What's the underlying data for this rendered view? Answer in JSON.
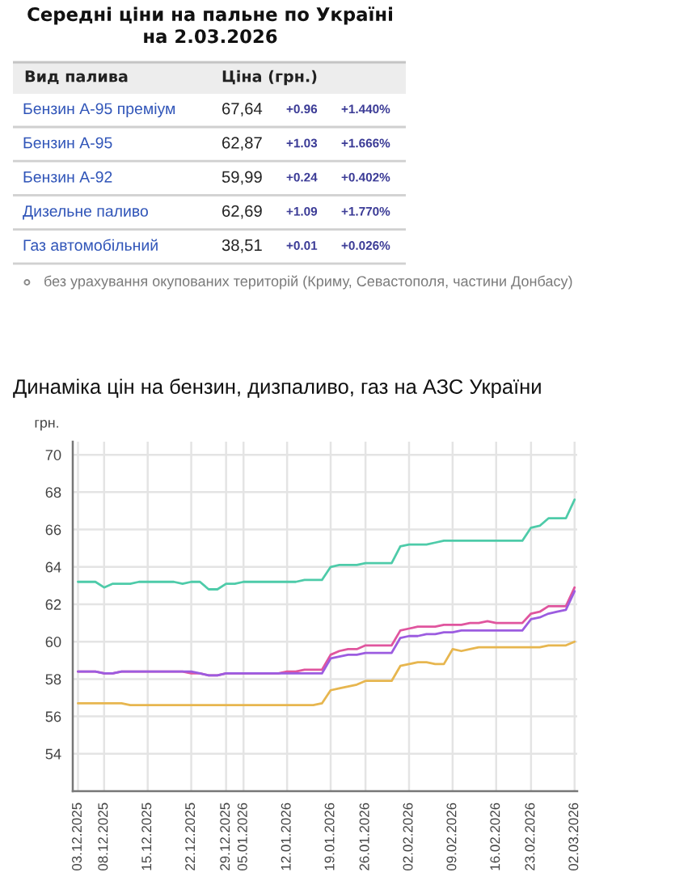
{
  "chart_data": [
    {
      "type": "other",
      "title": "Середні ціни на пальне по Україні\nна 2.03.2026",
      "categories": [
        "Бензин А-95 преміум",
        "Бензин А-95",
        "Бензин А-92",
        "Дизельне паливо",
        "Газ автомобільний"
      ],
      "series": [
        {
          "name": "Ціна (грн.)",
          "color": "#222222",
          "values": [
            67.64,
            62.87,
            59.99,
            62.69,
            38.51
          ],
          "value_labels": [
            "67,64",
            "62,87",
            "59,99",
            "62,69",
            "38,51"
          ]
        },
        {
          "color": "#3b3b96",
          "values": [
            0.96,
            1.03,
            0.24,
            1.09,
            0.01
          ],
          "value_labels": [
            "+0.96",
            "+1.03",
            "+0.24",
            "+1.09",
            "+0.01"
          ]
        },
        {
          "color": "#3b3b96",
          "values": [
            1.44,
            1.666,
            0.402,
            1.77,
            0.026
          ],
          "value_labels": [
            "+1.440%",
            "+1.666%",
            "+0.402%",
            "+1.770%",
            "+0.026%"
          ]
        }
      ],
      "annotations": [
        "Вид палива",
        "без урахування окупованих територій (Криму, Севастополя, частини Донбасу)"
      ]
    },
    {
      "type": "line",
      "title": "Динаміка цін на бензин, дизпаливо, газ на АЗС України",
      "ylabel": "грн.",
      "categories": [
        "03.12.2025",
        null,
        null,
        "08.12.2025",
        null,
        null,
        null,
        null,
        "15.12.2025",
        null,
        null,
        null,
        null,
        "22.12.2025",
        null,
        null,
        null,
        "29.12.2025",
        null,
        "05.01.2026",
        null,
        null,
        null,
        null,
        "12.01.2026",
        null,
        null,
        null,
        null,
        "19.01.2026",
        null,
        null,
        null,
        "26.01.2026",
        null,
        null,
        null,
        null,
        "02.02.2026",
        null,
        null,
        null,
        null,
        "09.02.2026",
        null,
        null,
        null,
        null,
        "16.02.2026",
        null,
        null,
        null,
        "23.02.2026",
        null,
        null,
        null,
        null,
        "02.03.2026"
      ],
      "series": [
        {
          "color": "#4ecba9",
          "values": [
            63.2,
            63.2,
            63.2,
            62.9,
            63.1,
            63.1,
            63.1,
            63.2,
            63.2,
            63.2,
            63.2,
            63.2,
            63.1,
            63.2,
            63.2,
            62.8,
            62.8,
            63.1,
            63.1,
            63.2,
            63.2,
            63.2,
            63.2,
            63.2,
            63.2,
            63.2,
            63.3,
            63.3,
            63.3,
            64.0,
            64.1,
            64.1,
            64.1,
            64.2,
            64.2,
            64.2,
            64.2,
            65.1,
            65.2,
            65.2,
            65.2,
            65.3,
            65.4,
            65.4,
            65.4,
            65.4,
            65.4,
            65.4,
            65.4,
            65.4,
            65.4,
            65.4,
            66.1,
            66.2,
            66.6,
            66.6,
            66.6,
            67.6
          ]
        },
        {
          "color": "#e0559e",
          "values": [
            58.4,
            58.4,
            58.4,
            58.3,
            58.3,
            58.4,
            58.4,
            58.4,
            58.4,
            58.4,
            58.4,
            58.4,
            58.4,
            58.3,
            58.3,
            58.2,
            58.2,
            58.3,
            58.3,
            58.3,
            58.3,
            58.3,
            58.3,
            58.3,
            58.4,
            58.4,
            58.5,
            58.5,
            58.5,
            59.3,
            59.5,
            59.6,
            59.6,
            59.8,
            59.8,
            59.8,
            59.8,
            60.6,
            60.7,
            60.8,
            60.8,
            60.8,
            60.9,
            60.9,
            60.9,
            61.0,
            61.0,
            61.1,
            61.0,
            61.0,
            61.0,
            61.0,
            61.5,
            61.6,
            61.9,
            61.9,
            61.9,
            62.9
          ]
        },
        {
          "color": "#e7b64f",
          "values": [
            56.7,
            56.7,
            56.7,
            56.7,
            56.7,
            56.7,
            56.6,
            56.6,
            56.6,
            56.6,
            56.6,
            56.6,
            56.6,
            56.6,
            56.6,
            56.6,
            56.6,
            56.6,
            56.6,
            56.6,
            56.6,
            56.6,
            56.6,
            56.6,
            56.6,
            56.6,
            56.6,
            56.6,
            56.7,
            57.4,
            57.5,
            57.6,
            57.7,
            57.9,
            57.9,
            57.9,
            57.9,
            58.7,
            58.8,
            58.9,
            58.9,
            58.8,
            58.8,
            59.6,
            59.5,
            59.6,
            59.7,
            59.7,
            59.7,
            59.7,
            59.7,
            59.7,
            59.7,
            59.7,
            59.8,
            59.8,
            59.8,
            60.0
          ]
        },
        {
          "color": "#9c5ce0",
          "values": [
            58.4,
            58.4,
            58.4,
            58.3,
            58.3,
            58.4,
            58.4,
            58.4,
            58.4,
            58.4,
            58.4,
            58.4,
            58.4,
            58.4,
            58.3,
            58.2,
            58.2,
            58.3,
            58.3,
            58.3,
            58.3,
            58.3,
            58.3,
            58.3,
            58.3,
            58.3,
            58.3,
            58.3,
            58.3,
            59.1,
            59.2,
            59.3,
            59.3,
            59.4,
            59.4,
            59.4,
            59.4,
            60.2,
            60.3,
            60.3,
            60.4,
            60.4,
            60.5,
            60.5,
            60.6,
            60.6,
            60.6,
            60.6,
            60.6,
            60.6,
            60.6,
            60.6,
            61.2,
            61.3,
            61.5,
            61.6,
            61.7,
            62.7
          ]
        }
      ],
      "ylim": [
        52,
        70.7
      ],
      "yticks": [
        54,
        56,
        58,
        60,
        62,
        64,
        66,
        68,
        70
      ],
      "grid": true
    }
  ]
}
